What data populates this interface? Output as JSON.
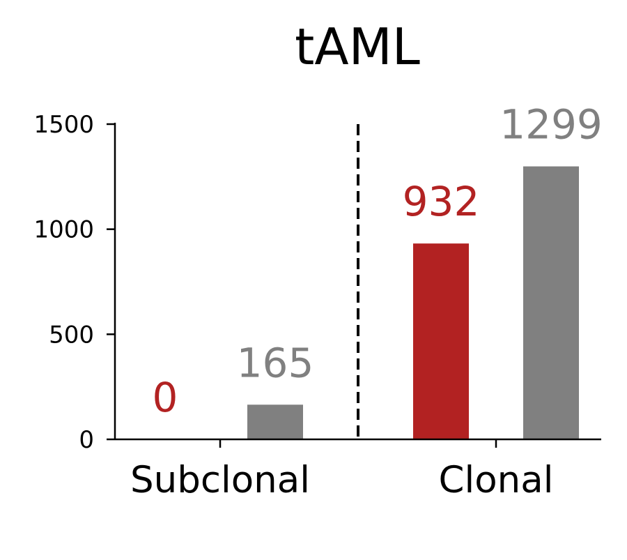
{
  "chart_data": {
    "type": "bar",
    "title": "tAML",
    "xlabel": "",
    "ylabel": "",
    "categories": [
      "Subclonal",
      "Clonal"
    ],
    "series": [
      {
        "values": [
          0,
          932
        ],
        "color": "#b22222"
      },
      {
        "values": [
          165,
          1299
        ],
        "color": "#808080"
      }
    ],
    "value_labels": [
      [
        "0",
        "932"
      ],
      [
        "165",
        "1299"
      ]
    ],
    "ylim": [
      0,
      1500
    ],
    "yticks": [
      0,
      500,
      1000,
      1500
    ],
    "ytick_labels": [
      "0",
      "500",
      "1000",
      "1500"
    ],
    "divider": "dashed vertical line between categories",
    "grid": false,
    "legend": false
  }
}
